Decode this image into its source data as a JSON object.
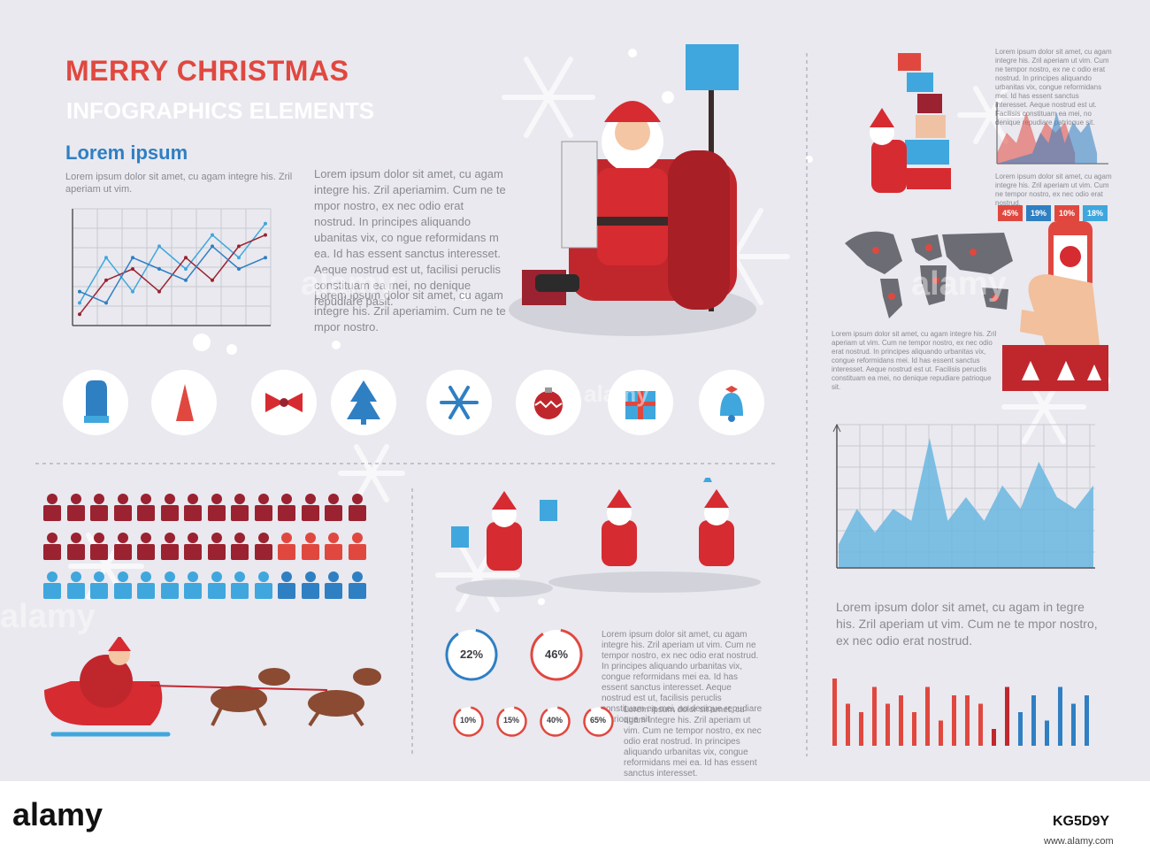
{
  "header": {
    "title": "MERRY CHRISTMAS",
    "subtitle": "INFOGRAPHICS ELEMENTS"
  },
  "section_left": {
    "heading": "Lorem ipsum",
    "text": "Lorem ipsum dolor sit amet, cu agam integre his. Zril aperiam ut vim."
  },
  "center_text": {
    "paragraph1": "Lorem ipsum dolor sit amet, cu agam integre his. Zril aperiamim. Cum ne te mpor nostro, ex nec odio erat nostrud. In principes aliquando ubanitas vix, co ngue reformidans m ea. Id has essent sanctus interesset. Aeque nostrud est ut, facilisi peruclis constituam ea mei, no denique repudiare pasit.",
    "paragraph2": "Lorem ipsum dolor sit amet, cu agam integre his. Zril aperiamim. Cum ne te mpor nostro."
  },
  "right_top": {
    "text1": "Lorem ipsum dolor sit amet, cu agam integre his. Zril aperiam ut vim. Cum ne tempor nostro, ex ne c odio erat nostrud. In principes aliquando urbanitas vix, congue reformidans mei. Id has essent sanctus interesset. Aeque nostrud est ut. Facilisis constituam ea mei, no denique repudiare patrioque sit.",
    "text2": "Lorem ipsum dolor sit amet, cu agam integre his. Zril aperiam ut vim. Cum ne tempor nostro, ex nec odio erat nostrud.",
    "badges": [
      {
        "label": "45%",
        "color": "#e0483f"
      },
      {
        "label": "19%",
        "color": "#2f7fc3"
      },
      {
        "label": "10%",
        "color": "#e0483f"
      },
      {
        "label": "18%",
        "color": "#3fa7dd"
      }
    ],
    "map_text": "Lorem ipsum dolor sit amet, cu agam integre his. Zril aperiam ut vim. Cum ne tempor nostro, ex nec odio erat nostrud. In principes aliquando urbanitas vix, congue reformidans mei. Id has essent sanctus interesset. Aeque nostrud est ut. Facilisis peruclis constituam ea mei, no denique repudiare patrioque sit."
  },
  "right_bottom": {
    "text": "Lorem ipsum dolor sit amet, cu agam in tegre his. Zril aperiam ut vim. Cum ne te mpor nostro, ex nec odio erat nostrud."
  },
  "bottom_center": {
    "text1": "Lorem ipsum dolor sit amet, cu agam integre his. Zril aperiam ut vim. Cum ne tempor nostro, ex nec odio erat nostrud. In principes aliquando urbanitas vix, congue reformidans mei ea. Id has essent sanctus interesset. Aeque nostrud est ut, facilisis peruclis constituam ea mei, no denique repudiare patrioque sit.",
    "text2": "Lorem ipsum dolor sit amet, cu agam integre his. Zril aperiam ut vim. Cum ne tempor nostro, ex nec odio erat nostrud. In principes aliquando urbanitas vix, congue reformidans mei ea. Id has essent sanctus interesset.",
    "rings_large": [
      {
        "label": "22%",
        "value": 22,
        "color": "#2f7fc3"
      },
      {
        "label": "46%",
        "value": 46,
        "color": "#e0483f"
      }
    ],
    "rings_small": [
      {
        "label": "10%",
        "value": 10,
        "color": "#e0483f"
      },
      {
        "label": "15%",
        "value": 15,
        "color": "#e0483f"
      },
      {
        "label": "40%",
        "value": 40,
        "color": "#e0483f"
      },
      {
        "label": "65%",
        "value": 65,
        "color": "#e0483f"
      }
    ]
  },
  "icons": [
    "mitten-icon",
    "hat-icon",
    "bow-icon",
    "tree-icon",
    "snowflake-icon",
    "ornament-icon",
    "gift-icon",
    "bell-icon"
  ],
  "people_rows": [
    {
      "count": 14,
      "filled": 14,
      "color": "#9b2230",
      "empty_color": "#9b2230"
    },
    {
      "count": 14,
      "filled": 10,
      "color": "#9b2230",
      "empty_color": "#e0483f"
    },
    {
      "count": 14,
      "filled": 10,
      "color": "#3fa7dd",
      "empty_color": "#2f7fc3"
    }
  ],
  "watermarks": [
    "alamy",
    "alamy",
    "alamy",
    "alamy"
  ],
  "footer": {
    "logo": "alamy",
    "image_id": "KG5D9Y",
    "url": "www.alamy.com"
  },
  "chart_data": [
    {
      "type": "line",
      "series": [
        {
          "values": [
            2,
            6,
            3,
            7,
            5,
            8,
            6,
            9
          ]
        },
        {
          "values": [
            1,
            4,
            5,
            3,
            6,
            4,
            7,
            8
          ]
        },
        {
          "values": [
            3,
            2,
            6,
            5,
            4,
            7,
            5,
            6
          ]
        }
      ],
      "ylim": [
        0,
        10
      ]
    },
    {
      "type": "area",
      "values": [
        2,
        5,
        3,
        5,
        4,
        11,
        4,
        6,
        4,
        7,
        5,
        9,
        6,
        5,
        7
      ],
      "ylim": [
        0,
        12
      ]
    },
    {
      "type": "bar",
      "series": [
        {
          "values": [
            8,
            5,
            4,
            7,
            5,
            6,
            4,
            7,
            3,
            6,
            6,
            5,
            2,
            7,
            4,
            6,
            3,
            7,
            5,
            6
          ]
        }
      ],
      "ylim": [
        0,
        10
      ]
    },
    {
      "type": "area",
      "values": [
        1,
        3,
        2,
        5,
        2,
        4,
        3,
        4,
        1
      ],
      "ylim": [
        0,
        6
      ]
    }
  ]
}
